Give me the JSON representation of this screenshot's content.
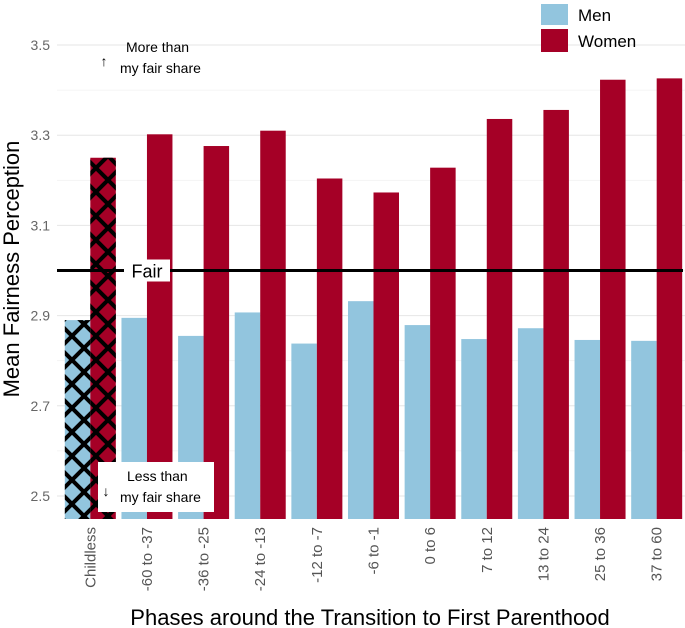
{
  "chart_data": {
    "type": "bar",
    "title": "",
    "xlabel": "Phases around the Transition to First Parenthood",
    "ylabel": "Mean Fairness Perception",
    "ylim": [
      2.45,
      3.55
    ],
    "yticks": [
      2.5,
      2.7,
      2.9,
      3.1,
      3.3,
      3.5
    ],
    "ytick_labels": [
      "2.5",
      "2.7",
      "2.9",
      "3.1",
      "3.3",
      "3.5"
    ],
    "categories": [
      "Childless",
      "-60 to -37",
      "-36 to -25",
      "-24 to -13",
      "-12 to -7",
      "-6 to -1",
      "0 to 6",
      "7 to 12",
      "13 to 24",
      "25 to 36",
      "37 to 60"
    ],
    "series": [
      {
        "name": "Men",
        "color": "#92C5DE",
        "values": [
          2.89,
          2.895,
          2.855,
          2.907,
          2.838,
          2.932,
          2.879,
          2.848,
          2.872,
          2.846,
          2.844
        ]
      },
      {
        "name": "Women",
        "color": "#A50026",
        "values": [
          3.25,
          3.302,
          3.276,
          3.31,
          3.204,
          3.173,
          3.228,
          3.336,
          3.356,
          3.423,
          3.426
        ]
      }
    ],
    "hatched_category": "Childless",
    "reference_line": {
      "value": 3.0,
      "label": "Fair"
    },
    "annotations": {
      "upper": {
        "arrow": "↑",
        "line1": "More than",
        "line2": "my fair share"
      },
      "lower": {
        "arrow": "↓",
        "line1": "Less than",
        "line2": "my fair share"
      }
    },
    "legend_position": "top-right",
    "grid": true
  }
}
